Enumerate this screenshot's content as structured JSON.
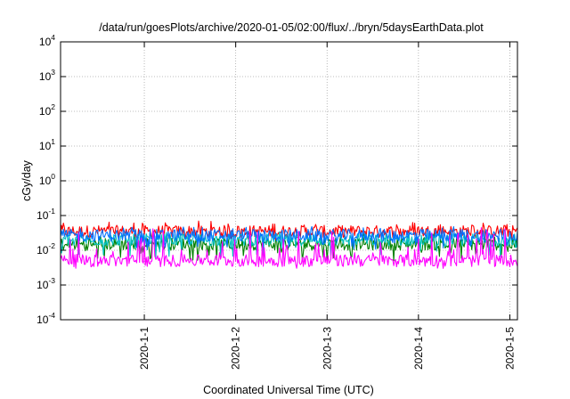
{
  "chart_data": {
    "type": "line",
    "title": "/data/run/goesPlots/archive/2020-01-05/02:00/flux/../bryn/5daysEarthData.plot",
    "xlabel": "Coordinated Universal Time (UTC)",
    "ylabel": "cGy/day",
    "y_scale": "log",
    "ylim": [
      0.0001,
      10000
    ],
    "y_ticks": [
      {
        "base": "10",
        "exp": "-4",
        "value": 0.0001
      },
      {
        "base": "10",
        "exp": "-3",
        "value": 0.001
      },
      {
        "base": "10",
        "exp": "-2",
        "value": 0.01
      },
      {
        "base": "10",
        "exp": "-1",
        "value": 0.1
      },
      {
        "base": "10",
        "exp": "0",
        "value": 1
      },
      {
        "base": "10",
        "exp": "1",
        "value": 10
      },
      {
        "base": "10",
        "exp": "2",
        "value": 100
      },
      {
        "base": "10",
        "exp": "3",
        "value": 1000
      },
      {
        "base": "10",
        "exp": "4",
        "value": 10000
      }
    ],
    "xlim": [
      "2019-12-31T02:00",
      "2020-01-05T02:00"
    ],
    "x_ticks": [
      {
        "label": "2020-1-1",
        "value": "2020-01-01T00:00"
      },
      {
        "label": "2020-1-2",
        "value": "2020-01-02T00:00"
      },
      {
        "label": "2020-1-3",
        "value": "2020-01-03T00:00"
      },
      {
        "label": "2020-1-4",
        "value": "2020-01-04T00:00"
      },
      {
        "label": "2020-1-5",
        "value": "2020-01-05T00:00"
      }
    ],
    "grid": true,
    "series": [
      {
        "color": "#ff0000",
        "min": 0.02,
        "max": 0.07,
        "typical": 0.035
      },
      {
        "color": "#008000",
        "min": 0.005,
        "max": 0.03,
        "typical": 0.015
      },
      {
        "color": "#00c0c0",
        "min": 0.006,
        "max": 0.035,
        "typical": 0.02
      },
      {
        "color": "#0070ff",
        "min": 0.01,
        "max": 0.05,
        "typical": 0.027
      },
      {
        "color": "#ff00ff",
        "min": 0.003,
        "max": 0.045,
        "typical": 0.005
      }
    ]
  }
}
